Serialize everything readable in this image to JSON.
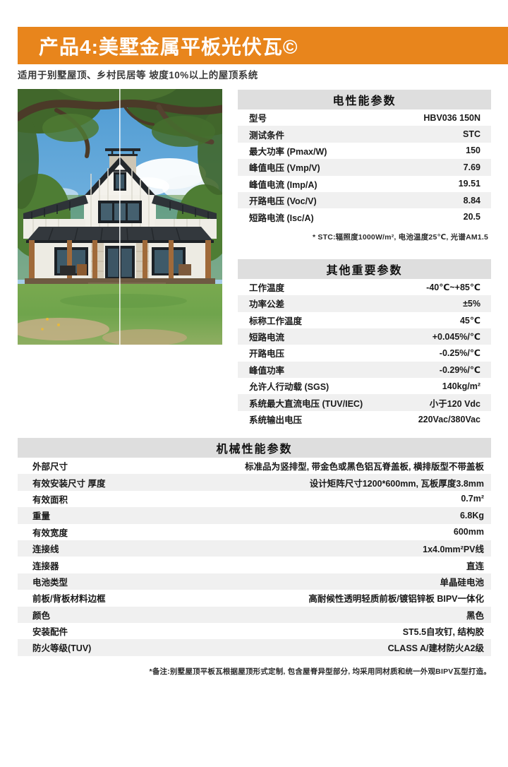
{
  "page": {
    "title": "产品4:美墅金属平板光伏瓦©",
    "subtitle": "适用于别墅屋顶、乡村民居等 坡度10%以上的屋顶系统"
  },
  "colors": {
    "accent_orange": "#E8851C",
    "table_header_bg": "#DEDEDE",
    "row_stripe_bg": "#F0F0F0",
    "roof_dark": "#2E3338",
    "lawn_green": "#6FA44C"
  },
  "photo": {
    "name": "villa-house-photo",
    "description": "白色现代农舍别墅, 黑色金属屋顶, 环绕门廊, 橡树与草坪"
  },
  "electrical": {
    "title": "电性能参数",
    "rows": [
      {
        "label": "型号",
        "value": "HBV036 150N"
      },
      {
        "label": "测试条件",
        "value": "STC"
      },
      {
        "label": "最大功率 (Pmax/W)",
        "value": "150"
      },
      {
        "label": "峰值电压 (Vmp/V)",
        "value": "7.69"
      },
      {
        "label": "峰值电流 (Imp/A)",
        "value": "19.51"
      },
      {
        "label": "开路电压 (Voc/V)",
        "value": "8.84"
      },
      {
        "label": "短路电流 (Isc/A)",
        "value": "20.5"
      }
    ],
    "footnote": "* STC:辐照度1000W/m², 电池温度25℃, 光谱AM1.5"
  },
  "other": {
    "title": "其他重要参数",
    "rows": [
      {
        "label": "工作温度",
        "value": "-40℃~+85℃"
      },
      {
        "label": "功率公差",
        "value": "±5%"
      },
      {
        "label": "标称工作温度",
        "value": "45℃"
      },
      {
        "label": "短路电流",
        "value": "+0.045%/℃"
      },
      {
        "label": "开路电压",
        "value": "-0.25%/℃"
      },
      {
        "label": "峰值功率",
        "value": "-0.29%/℃"
      },
      {
        "label": "允许人行动载 (SGS)",
        "value": "140kg/m²"
      },
      {
        "label": "系统最大直流电压 (TUV/IEC)",
        "value": "小于120 Vdc"
      },
      {
        "label": "系统输出电压",
        "value": "220Vac/380Vac"
      }
    ]
  },
  "mechanical": {
    "title": "机械性能参数",
    "rows": [
      {
        "label": "外部尺寸",
        "value": "标准品为竖排型, 带金色或黑色铝瓦脊盖板, 横排版型不带盖板"
      },
      {
        "label": "有效安装尺寸 厚度",
        "value": "设计矩阵尺寸1200*600mm, 瓦板厚度3.8mm"
      },
      {
        "label": "有效面积",
        "value": "0.7m²"
      },
      {
        "label": "重量",
        "value": "6.8Kg"
      },
      {
        "label": "有效宽度",
        "value": "600mm"
      },
      {
        "label": "连接线",
        "value": "1x4.0mm²PV线"
      },
      {
        "label": "连接器",
        "value": "直连"
      },
      {
        "label": "电池类型",
        "value": "单晶硅电池"
      },
      {
        "label": "前板/背板材料边框",
        "value": "高耐候性透明轻质前板/镀铝锌板 BIPV一体化"
      },
      {
        "label": "颜色",
        "value": "黑色"
      },
      {
        "label": "安装配件",
        "value": "ST5.5自攻钉, 结构胶"
      },
      {
        "label": "防火等级(TUV)",
        "value": "CLASS A/建材防火A2级"
      }
    ],
    "footnote": "*备注:别墅屋顶平板瓦根据屋顶形式定制, 包含屋脊异型部分, 均采用同材质和统一外观BIPV瓦型打造。"
  }
}
